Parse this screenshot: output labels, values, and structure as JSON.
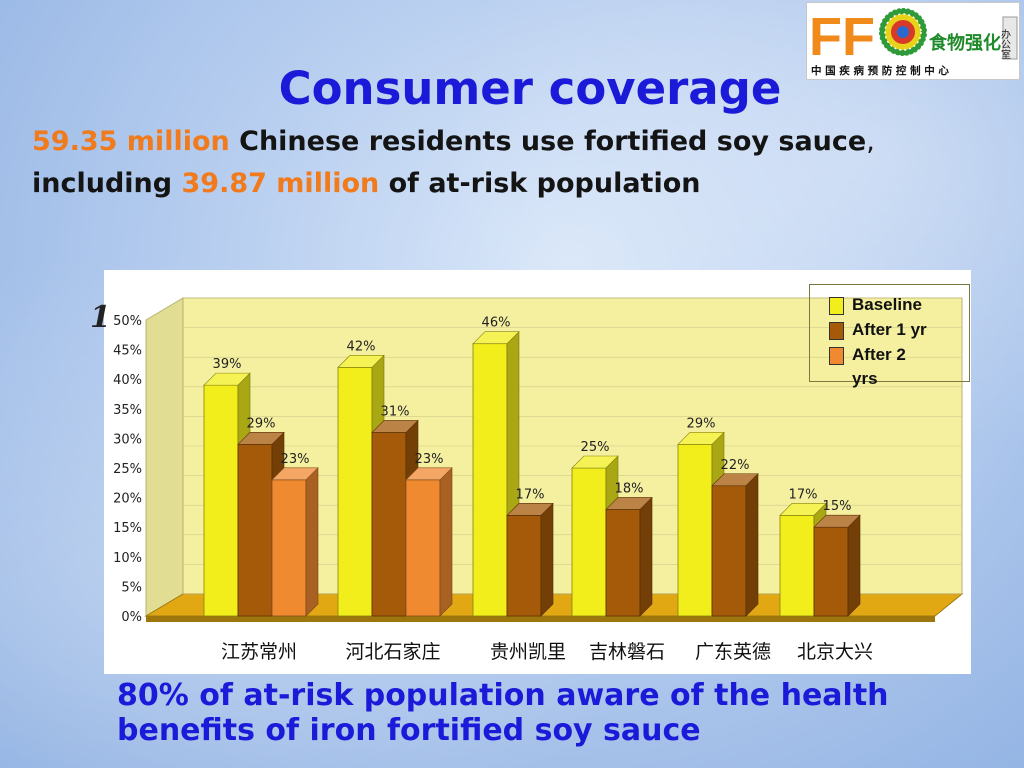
{
  "slide": {
    "title": "Consumer coverage",
    "subtitle_parts": {
      "a": "59.35 million",
      "b": " Chinese residents use fortified soy sauce",
      "c": ",",
      "d": "including ",
      "e": "39.87 million",
      "f": " of at-risk population"
    },
    "stray_char": "1",
    "footer": "80% of at-risk population aware of the health benefits of iron fortified soy sauce"
  },
  "logo": {
    "letters": "FF",
    "tagline": "食物强化",
    "badge": "办公室",
    "org": "中 国 疾 病 预 防 控 制 中 心"
  },
  "colors": {
    "title": "#1a1ad8",
    "highlight": "#f07a1c",
    "baseline": "#f2ee1c",
    "after1": "#a55a0a",
    "after2": "#f08a30",
    "wall": "#f5f0a0",
    "floor": "#e2a814"
  },
  "chart_data": {
    "type": "bar",
    "title": "",
    "xlabel": "",
    "ylabel": "",
    "ylim": [
      0,
      50
    ],
    "yticks": [
      "0%",
      "5%",
      "10%",
      "15%",
      "20%",
      "25%",
      "30%",
      "35%",
      "40%",
      "45%",
      "50%"
    ],
    "categories": [
      "江苏常州",
      "河北石家庄",
      "贵州凯里",
      "吉林磐石",
      "广东英德",
      "北京大兴"
    ],
    "series": [
      {
        "name": "Baseline",
        "values": [
          39,
          42,
          46,
          25,
          29,
          17
        ],
        "labels": [
          "39%",
          "42%",
          "46%",
          "25%",
          "29%",
          "17%"
        ]
      },
      {
        "name": "After 1 yr",
        "values": [
          29,
          31,
          17,
          18,
          22,
          15
        ],
        "labels": [
          "29%",
          "31%",
          "17%",
          "18%",
          "22%",
          "15%"
        ]
      },
      {
        "name": "After 2 yrs",
        "values": [
          23,
          23,
          null,
          null,
          null,
          null
        ],
        "labels": [
          "23%",
          "23%",
          "",
          "",
          "",
          ""
        ]
      }
    ],
    "legend": "top-right",
    "style": "3d"
  }
}
